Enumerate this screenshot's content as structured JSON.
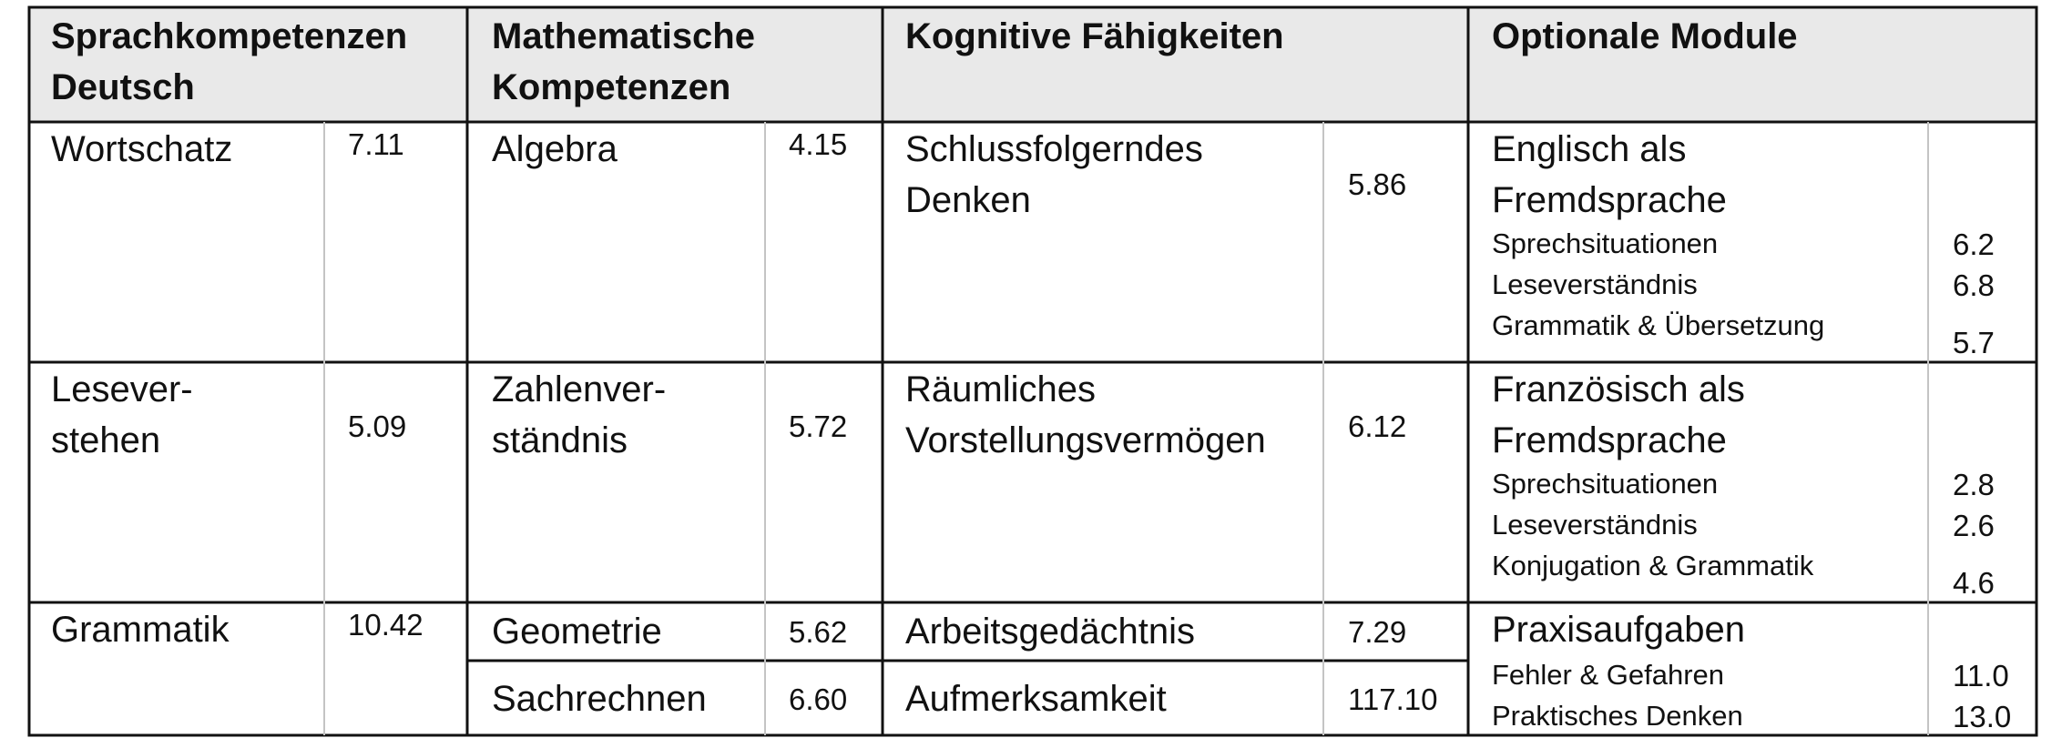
{
  "headers": [
    "Sprachkompetenzen Deutsch",
    "Mathematische Kompetenzen",
    "Kognitive Fähigkeiten",
    "Optionale Module"
  ],
  "sprach": [
    {
      "label": "Wortschatz",
      "value": "7.11"
    },
    {
      "label": "Lesever-\nstehen",
      "value": "5.09"
    },
    {
      "label": "Grammatik",
      "value": "10.42"
    }
  ],
  "mathe": [
    {
      "label": "Algebra",
      "value": "4.15"
    },
    {
      "label": "Zahlenver-\nständnis",
      "value": "5.72"
    },
    {
      "label": "Geometrie",
      "value": "5.62"
    },
    {
      "label": "Sachrechnen",
      "value": "6.60"
    }
  ],
  "kognitiv": [
    {
      "label": "Schlussfolgerndes Denken",
      "value": "5.86"
    },
    {
      "label": "Räumliches Vorstellungsvermögen",
      "value": "6.12"
    },
    {
      "label": "Arbeitsgedächtnis",
      "value": "7.29"
    },
    {
      "label": "Aufmerksamkeit",
      "value": "117.10"
    }
  ],
  "optional": [
    {
      "title": "Englisch als Fremdsprache",
      "items": [
        {
          "label": "Sprechsituationen",
          "value": "6.2"
        },
        {
          "label": "Leseverständnis",
          "value": "6.8"
        },
        {
          "label": "Grammatik & Übersetzung",
          "value": "5.7"
        }
      ]
    },
    {
      "title": "Französisch als Fremdsprache",
      "items": [
        {
          "label": "Sprechsituationen",
          "value": "2.8"
        },
        {
          "label": "Leseverständnis",
          "value": "2.6"
        },
        {
          "label": "Konjugation & Grammatik",
          "value": "4.6"
        }
      ]
    },
    {
      "title": "Praxisaufgaben",
      "items": [
        {
          "label": "Fehler & Gefahren",
          "value": "11.0"
        },
        {
          "label": "Praktisches Denken",
          "value": "13.0"
        }
      ]
    }
  ]
}
